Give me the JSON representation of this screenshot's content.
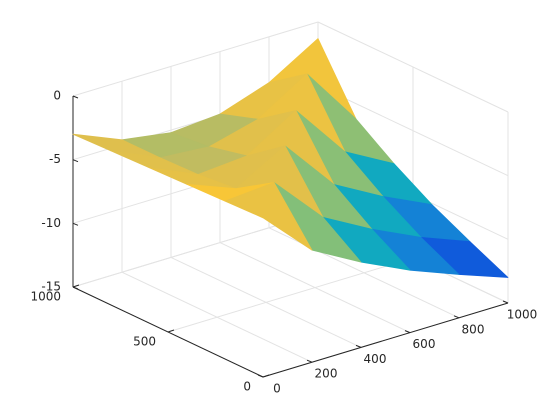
{
  "chart_data": {
    "type": "surface",
    "x": [
      0,
      200,
      400,
      600,
      800,
      1000
    ],
    "y": [
      0,
      200,
      400,
      600,
      800,
      1000
    ],
    "z": [
      [
        -2.5,
        -6.2,
        -8.3,
        -10.1,
        -11.6,
        -13.0
      ],
      [
        -2.6,
        -2.3,
        -6.2,
        -8.3,
        -10.1,
        -11.6
      ],
      [
        -2.7,
        -4.2,
        -2.0,
        -6.2,
        -8.3,
        -10.1
      ],
      [
        -2.8,
        -4.5,
        -4.2,
        -1.8,
        -6.2,
        -8.3
      ],
      [
        -2.9,
        -4.6,
        -4.9,
        -3.9,
        -1.5,
        -6.2
      ],
      [
        -3.0,
        -4.6,
        -5.2,
        -4.9,
        -3.6,
        -1.3
      ]
    ],
    "xlim": [
      0,
      1000
    ],
    "ylim": [
      0,
      1000
    ],
    "zlim": [
      -15,
      0
    ],
    "xticks": [
      0,
      200,
      400,
      600,
      800,
      1000
    ],
    "yticks": [
      0,
      500,
      1000
    ],
    "zticks": [
      -15,
      -10,
      -5,
      0
    ],
    "grid": true,
    "colormap": [
      "#352a87",
      "#0f5cdd",
      "#1481d6",
      "#06a4ca",
      "#2eb7a4",
      "#87bf77",
      "#d1bb59",
      "#fec832",
      "#f9fb0e"
    ]
  }
}
